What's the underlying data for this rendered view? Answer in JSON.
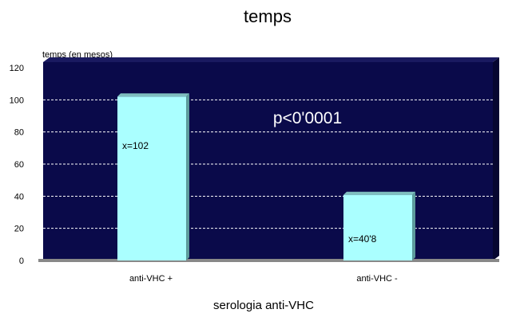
{
  "chart_data": {
    "type": "bar",
    "title": "temps",
    "ylabel": "temps (en mesos)",
    "xlabel": "serologia anti-VHC",
    "categories": [
      "anti-VHC +",
      "anti-VHC -"
    ],
    "values": [
      102,
      40.8
    ],
    "data_labels": [
      "x=102",
      "x=40'8"
    ],
    "annotation": "p<0'0001",
    "ylim": [
      0,
      120
    ],
    "yticks": [
      "0",
      "20",
      "40",
      "60",
      "80",
      "100",
      "120"
    ],
    "grid": true,
    "legend": "none",
    "colors": {
      "plot_background": "#0a0a4a",
      "bar_front": "#aaffff",
      "bar_side": "#5c9c9c",
      "bar_top": "#7fbfbf",
      "gridline": "#ffffff"
    }
  }
}
